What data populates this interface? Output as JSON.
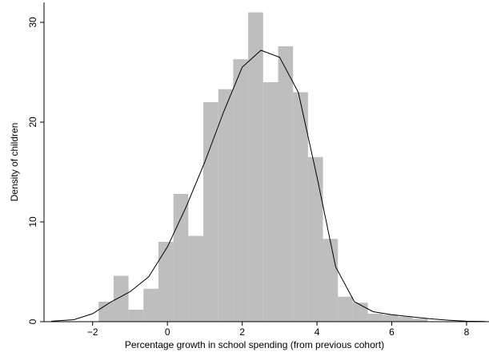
{
  "chart_data": {
    "type": "histogram",
    "xlabel": "Percentage growth in school spending (from previous cohort)",
    "ylabel": "Density of children",
    "bins": [
      -1.84,
      -1.44,
      -1.04,
      -0.64,
      -0.24,
      0.16,
      0.56,
      0.96,
      1.36,
      1.76,
      2.16,
      2.56,
      2.96,
      3.36,
      3.76,
      4.16,
      4.56,
      4.96,
      5.36,
      5.76,
      6.16,
      6.56,
      6.96
    ],
    "values": [
      2,
      4.6,
      1.2,
      3.3,
      8,
      12.8,
      8.6,
      22,
      23.3,
      26.3,
      31,
      24,
      27.6,
      23,
      16.5,
      8.3,
      2.5,
      1.9,
      0.8,
      0.7,
      0.5,
      0.3
    ],
    "color": "#bebebe",
    "line": {
      "color": "#000000",
      "x": [
        -3.1,
        -2.5,
        -2,
        -1.5,
        -1,
        -0.5,
        0,
        0.5,
        1,
        1.5,
        2,
        2.5,
        3,
        3.5,
        4,
        4.5,
        5,
        5.5,
        6,
        6.5,
        7,
        7.5,
        8,
        8.5
      ],
      "values": [
        0.05,
        0.2,
        0.8,
        2,
        3,
        4.5,
        7.5,
        11.5,
        16,
        21,
        25.5,
        27.2,
        26.5,
        23,
        14.5,
        5.5,
        2,
        1,
        0.7,
        0.5,
        0.3,
        0.15,
        0.05,
        0.02
      ]
    },
    "xlim": [
      -3.3,
      8.6
    ],
    "ylim": [
      0,
      32
    ],
    "xticks": [
      {
        "value": -2,
        "label": "−2"
      },
      0,
      2,
      4,
      6,
      8
    ],
    "yticks": [
      0,
      10,
      20,
      30
    ]
  }
}
